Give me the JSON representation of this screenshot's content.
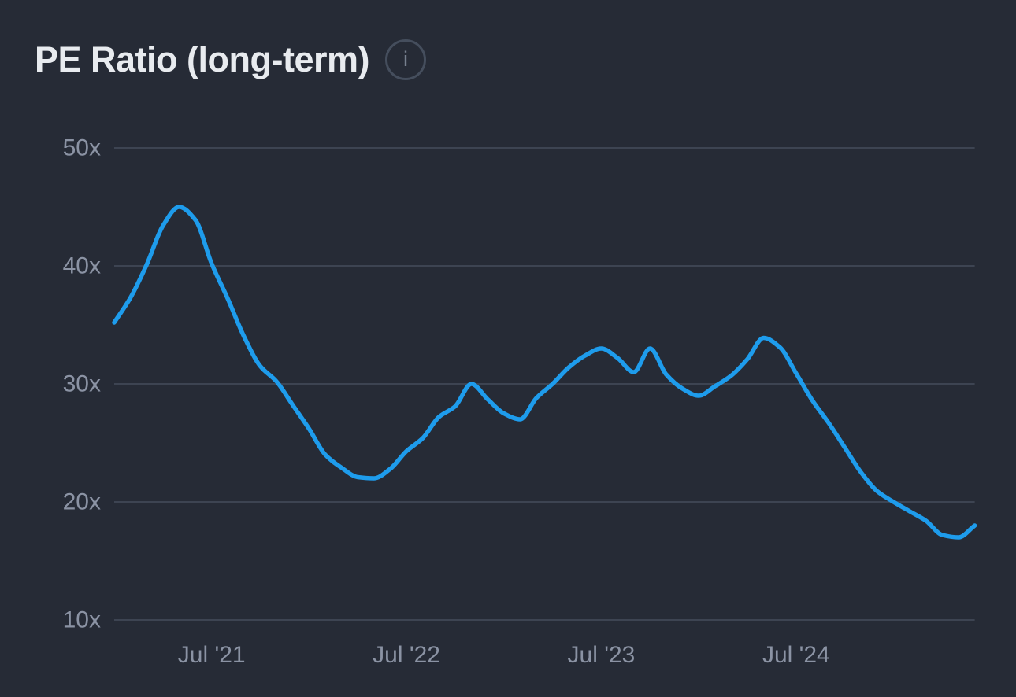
{
  "header": {
    "title": "PE Ratio (long-term)",
    "info_icon_glyph": "i"
  },
  "colors": {
    "background": "#262B36",
    "title": "#E8EBEF",
    "line": "#1E9CEC",
    "gridline": "#3D4452",
    "axis_label": "#8B93A4",
    "icon_border": "#454E5D",
    "icon_glyph": "#77818F"
  },
  "chart_data": {
    "type": "line",
    "title": "PE Ratio (long-term)",
    "grid": "horizontal-only",
    "legend": "none",
    "ylim": [
      10,
      50
    ],
    "y_ticks": [
      50,
      40,
      30,
      20,
      10
    ],
    "y_tick_suffix": "x",
    "x_start_month": "2021-01",
    "x_end_month": "2025-06",
    "x_ticks": [
      {
        "label": "Jul '21",
        "month_index": 6
      },
      {
        "label": "Jul '22",
        "month_index": 18
      },
      {
        "label": "Jul '23",
        "month_index": 30
      },
      {
        "label": "Jul '24",
        "month_index": 42
      }
    ],
    "series": [
      {
        "name": "PE Ratio (long-term)",
        "color": "#1E9CEC",
        "unit": "x",
        "monthly_values": [
          35.2,
          37.3,
          40.1,
          43.4,
          45.0,
          43.9,
          40.2,
          37.2,
          34.0,
          31.5,
          30.2,
          28.2,
          26.2,
          24.0,
          22.9,
          22.1,
          22.0,
          22.8,
          24.3,
          25.4,
          27.2,
          28.1,
          30.0,
          28.7,
          27.5,
          27.0,
          28.8,
          30.0,
          31.4,
          32.4,
          33.0,
          32.2,
          31.0,
          33.0,
          30.8,
          29.6,
          29.0,
          29.8,
          30.7,
          32.1,
          33.9,
          33.1,
          30.9,
          28.6,
          26.7,
          24.6,
          22.5,
          20.9,
          20.0,
          19.2,
          18.4,
          17.2,
          17.0,
          18.0
        ]
      }
    ]
  }
}
